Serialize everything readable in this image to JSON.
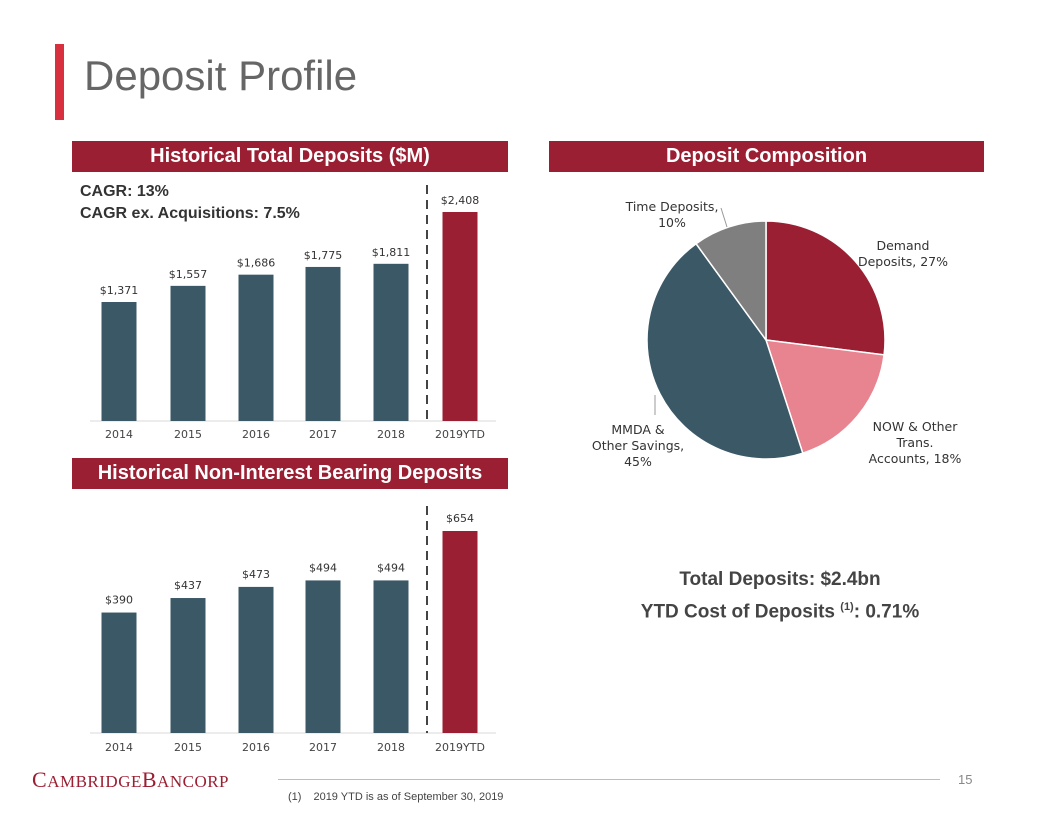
{
  "page": {
    "title": "Deposit Profile",
    "page_number": "15",
    "footnote_marker": "(1)",
    "footnote_text": "2019 YTD is as of September 30, 2019",
    "logo_text": "CAMBRIDGE BANCORP"
  },
  "colors": {
    "accent": "#d93040",
    "header_bg": "#9b1f32",
    "bar_historic": "#3b5866",
    "bar_highlight": "#9b1f32",
    "pie_demand": "#9b1f32",
    "pie_now": "#e8848f",
    "pie_mmda": "#3b5866",
    "pie_time": "#7f7f7f"
  },
  "sections": {
    "total_deposits_header": "Historical Total Deposits ($M)",
    "composition_header": "Deposit Composition",
    "nib_header": "Historical Non-Interest Bearing Deposits"
  },
  "cagr": {
    "line1": "CAGR: 13%",
    "line2": "CAGR ex. Acquisitions: 7.5%"
  },
  "summary": {
    "total": "Total Deposits: $2.4bn",
    "cost_label": "YTD Cost of Deposits ",
    "cost_sup": "(1)",
    "cost_value": ": 0.71%"
  },
  "chart_data": [
    {
      "type": "bar",
      "title": "Historical Total Deposits ($M)",
      "categories": [
        "2014",
        "2015",
        "2016",
        "2017",
        "2018",
        "2019YTD"
      ],
      "values": [
        1371,
        1557,
        1686,
        1775,
        1811,
        2408
      ],
      "labels": [
        "$1,371",
        "$1,557",
        "$1,686",
        "$1,775",
        "$1,811",
        "$2,408"
      ],
      "ylim": [
        0,
        2408
      ],
      "highlight_index": 5
    },
    {
      "type": "bar",
      "title": "Historical Non-Interest Bearing Deposits",
      "categories": [
        "2014",
        "2015",
        "2016",
        "2017",
        "2018",
        "2019YTD"
      ],
      "values": [
        390,
        437,
        473,
        494,
        494,
        654
      ],
      "labels": [
        "$390",
        "$437",
        "$473",
        "$494",
        "$494",
        "$654"
      ],
      "ylim": [
        0,
        654
      ],
      "highlight_index": 5
    },
    {
      "type": "pie",
      "title": "Deposit Composition",
      "slices": [
        {
          "name": "Demand Deposits",
          "value": 27,
          "label_lines": [
            "Demand",
            "Deposits, 27%"
          ],
          "color_key": "pie_demand"
        },
        {
          "name": "NOW & Other Trans. Accounts",
          "value": 18,
          "label_lines": [
            "NOW & Other",
            "Trans.",
            "Accounts, 18%"
          ],
          "color_key": "pie_now"
        },
        {
          "name": "MMDA & Other Savings",
          "value": 45,
          "label_lines": [
            "MMDA &",
            "Other Savings,",
            "45%"
          ],
          "color_key": "pie_mmda"
        },
        {
          "name": "Time Deposits",
          "value": 10,
          "label_lines": [
            "Time Deposits,",
            "10%"
          ],
          "color_key": "pie_time"
        }
      ]
    }
  ]
}
